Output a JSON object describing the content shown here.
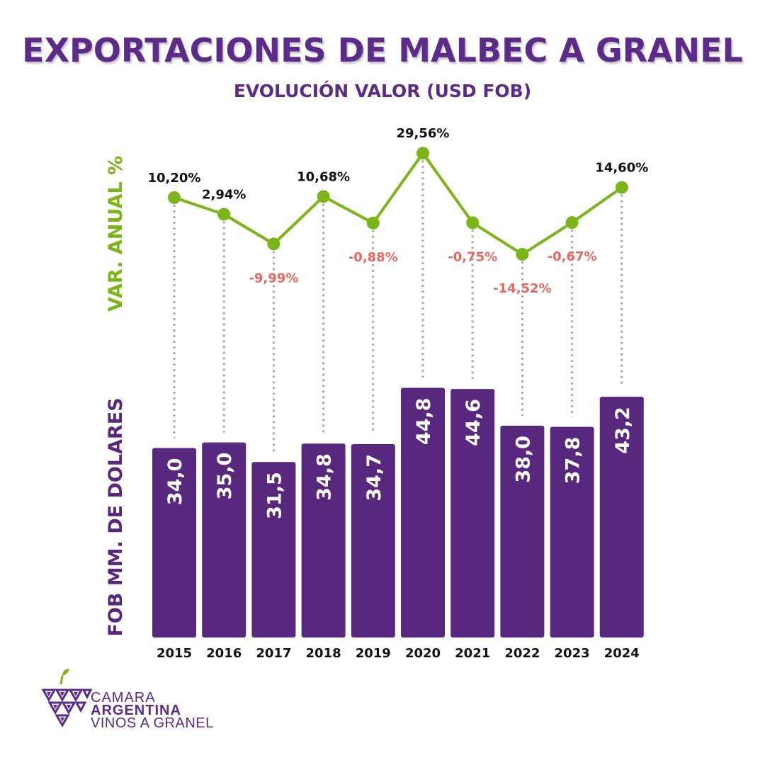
{
  "colors": {
    "bar": "#57287e",
    "line": "#7cb518",
    "positive_label": "#111111",
    "negative_label": "#e8685f",
    "title": "#5c2b8a",
    "dotted": "#a9a9a9"
  },
  "chart_data": {
    "type": "bar",
    "title": "EXPORTACIONES DE MALBEC A GRANEL",
    "subtitle": "EVOLUCIÓN VALOR (USD FOB)",
    "categories": [
      "2015",
      "2016",
      "2017",
      "2018",
      "2019",
      "2020",
      "2021",
      "2022",
      "2023",
      "2024"
    ],
    "series": [
      {
        "name": "FOB MM. DE DOLARES",
        "type": "bar",
        "values": [
          34.0,
          35.0,
          31.5,
          34.8,
          34.7,
          44.8,
          44.6,
          38.0,
          37.8,
          43.2
        ],
        "labels": [
          "34,0",
          "35,0",
          "31,5",
          "34,8",
          "34,7",
          "44,8",
          "44,6",
          "38,0",
          "37,8",
          "43,2"
        ]
      },
      {
        "name": "VAR. ANUAL %",
        "type": "line",
        "values": [
          10.2,
          2.94,
          -9.99,
          10.68,
          -0.88,
          29.56,
          -0.75,
          -14.52,
          -0.67,
          14.6
        ],
        "labels": [
          "10,20%",
          "2,94%",
          "-9,99%",
          "10,68%",
          "-0,88%",
          "29,56%",
          "-0,75%",
          "-14,52%",
          "-0,67%",
          "14,60%"
        ]
      }
    ],
    "ylabel_bars": "FOB MM. DE  DOLARES",
    "ylabel_line": "VAR. ANUAL %",
    "ylim_bars": [
      0,
      50
    ],
    "ylim_line": [
      -20,
      35
    ]
  },
  "logo": {
    "line1": "CAMARA",
    "line2": "ARGENTINA",
    "line3": "VINOS A GRANEL"
  }
}
